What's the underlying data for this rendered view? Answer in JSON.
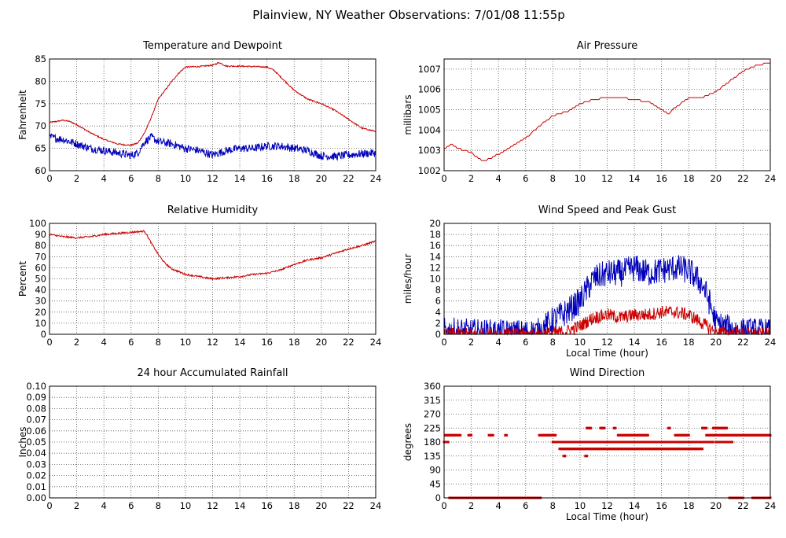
{
  "page": {
    "title": "Plainview, NY Weather Observations: 7/01/08 11:55p"
  },
  "colors": {
    "red": "#cc0000",
    "blue": "#0000bb",
    "frame": "#000000",
    "grid": "#555555"
  },
  "chart_data": [
    {
      "id": "temperature",
      "type": "line",
      "title": "Temperature and Dewpoint",
      "xlabel": "",
      "ylabel": "Fahrenheit",
      "xlim": [
        0,
        24
      ],
      "ylim": [
        60,
        85
      ],
      "xticks": [
        0,
        2,
        4,
        6,
        8,
        10,
        12,
        14,
        16,
        18,
        20,
        22,
        24
      ],
      "yticks": [
        60,
        65,
        70,
        75,
        80,
        85
      ],
      "grid": true,
      "series": [
        {
          "color": "#cc0000",
          "noise": 0.15,
          "x": [
            0,
            0.5,
            1,
            1.5,
            2,
            3,
            4,
            5,
            5.5,
            6,
            6.5,
            7,
            7.5,
            8,
            8.5,
            9,
            9.5,
            10,
            11,
            12,
            12.5,
            13,
            14,
            15,
            16,
            16.5,
            17,
            18,
            19,
            20,
            21,
            22,
            23,
            24
          ],
          "y": [
            70.8,
            71,
            71.3,
            71,
            70.3,
            68.5,
            67,
            66,
            65.8,
            65.7,
            66.2,
            68.5,
            72,
            76,
            78,
            80,
            81.8,
            83.2,
            83.3,
            83.6,
            84.2,
            83.4,
            83.4,
            83.3,
            83.2,
            82.5,
            81,
            78,
            76,
            75,
            73.5,
            71.5,
            69.5,
            68.8
          ]
        },
        {
          "color": "#0000bb",
          "noise": 0.9,
          "x": [
            0,
            1,
            2,
            3,
            4,
            5,
            6,
            6.5,
            7,
            7.5,
            8,
            9,
            10,
            11,
            12,
            13,
            14,
            15,
            16,
            17,
            18,
            19,
            20,
            21,
            22,
            23,
            24
          ],
          "y": [
            67.5,
            67,
            66,
            65,
            64.5,
            64,
            63.4,
            64,
            66.5,
            67.5,
            66.5,
            66,
            65,
            64.5,
            63.5,
            64.5,
            65,
            65,
            65.5,
            65.5,
            65,
            64.5,
            63.3,
            63.2,
            63.5,
            63.8,
            64
          ]
        }
      ]
    },
    {
      "id": "pressure",
      "type": "line",
      "title": "Air Pressure",
      "xlabel": "",
      "ylabel": "millibars",
      "xlim": [
        0,
        24
      ],
      "ylim": [
        1002,
        1007.5
      ],
      "xticks": [
        0,
        2,
        4,
        6,
        8,
        10,
        12,
        14,
        16,
        18,
        20,
        22,
        24
      ],
      "yticks": [
        1002,
        1003,
        1004,
        1005,
        1006,
        1007
      ],
      "grid": true,
      "series": [
        {
          "color": "#cc0000",
          "noise": 0,
          "step": 0.12,
          "x": [
            0,
            0.5,
            1,
            2,
            2.5,
            3,
            4,
            5,
            6,
            7,
            8,
            9,
            10,
            11,
            12,
            13,
            14,
            15,
            16,
            16.5,
            17,
            18,
            19,
            20,
            21,
            22,
            23,
            24
          ],
          "y": [
            1003.1,
            1003.3,
            1003.1,
            1002.9,
            1002.6,
            1002.5,
            1002.8,
            1003.2,
            1003.6,
            1004.2,
            1004.7,
            1004.9,
            1005.3,
            1005.5,
            1005.6,
            1005.6,
            1005.5,
            1005.4,
            1005,
            1004.8,
            1005.1,
            1005.6,
            1005.6,
            1005.9,
            1006.4,
            1006.9,
            1007.2,
            1007.3
          ]
        }
      ]
    },
    {
      "id": "humidity",
      "type": "line",
      "title": "Relative Humidity",
      "xlabel": "",
      "ylabel": "Percent",
      "xlim": [
        0,
        24
      ],
      "ylim": [
        0,
        100
      ],
      "xticks": [
        0,
        2,
        4,
        6,
        8,
        10,
        12,
        14,
        16,
        18,
        20,
        22,
        24
      ],
      "yticks": [
        0,
        10,
        20,
        30,
        40,
        50,
        60,
        70,
        80,
        90,
        100
      ],
      "grid": true,
      "series": [
        {
          "color": "#cc0000",
          "noise": 0.8,
          "x": [
            0,
            1,
            2,
            3,
            4,
            5,
            6,
            7,
            7.5,
            8,
            8.5,
            9,
            10,
            11,
            12,
            13,
            14,
            15,
            16,
            17,
            18,
            19,
            20,
            21,
            22,
            23,
            24
          ],
          "y": [
            90,
            88,
            87,
            88,
            90,
            91,
            92,
            93,
            82,
            72,
            64,
            59,
            54,
            52,
            50,
            51,
            52,
            54,
            55,
            58,
            63,
            67,
            69,
            73,
            77,
            80,
            84
          ]
        }
      ]
    },
    {
      "id": "wind-speed",
      "type": "line",
      "title": "Wind Speed and Peak Gust",
      "xlabel": "Local Time (hour)",
      "ylabel": "miles/hour",
      "xlim": [
        0,
        24
      ],
      "ylim": [
        0,
        20
      ],
      "xticks": [
        0,
        2,
        4,
        6,
        8,
        10,
        12,
        14,
        16,
        18,
        20,
        22,
        24
      ],
      "yticks": [
        0,
        2,
        4,
        6,
        8,
        10,
        12,
        14,
        16,
        18,
        20
      ],
      "grid": true,
      "series": [
        {
          "color": "#0000bb",
          "noise": 2.5,
          "x": [
            0,
            1,
            2,
            3,
            4,
            5,
            6,
            7,
            8,
            9,
            10,
            10.5,
            11,
            11.5,
            12,
            13,
            14,
            15,
            16,
            17,
            18,
            19,
            19.5,
            20,
            21,
            22,
            23,
            24
          ],
          "y": [
            0.5,
            0.5,
            0.3,
            0.3,
            0.2,
            0.2,
            0.2,
            0.5,
            2.5,
            4,
            6,
            8,
            10,
            10.5,
            11,
            11,
            12,
            11,
            11.5,
            12,
            11.5,
            9,
            6,
            2,
            1,
            0.5,
            0.5,
            0.3
          ]
        },
        {
          "color": "#cc0000",
          "noise": 1.2,
          "x": [
            0,
            7,
            9,
            10,
            11,
            12,
            13,
            14,
            15,
            16,
            17,
            18,
            19,
            20,
            24
          ],
          "y": [
            0,
            0,
            0.5,
            1.5,
            3,
            3.5,
            3,
            3.5,
            3.5,
            4,
            4,
            3.5,
            2,
            0.3,
            0
          ]
        }
      ]
    },
    {
      "id": "rainfall",
      "type": "line",
      "title": "24 hour Accumulated Rainfall",
      "xlabel": "",
      "ylabel": "Inches",
      "xlim": [
        0,
        24
      ],
      "ylim": [
        0,
        0.1
      ],
      "xticks": [
        0,
        2,
        4,
        6,
        8,
        10,
        12,
        14,
        16,
        18,
        20,
        22,
        24
      ],
      "yticks": [
        "0.00",
        "0.01",
        "0.02",
        "0.03",
        "0.04",
        "0.05",
        "0.06",
        "0.07",
        "0.08",
        "0.09",
        "0.10"
      ],
      "grid": true,
      "series": [
        {
          "color": "#cc0000",
          "noise": 0,
          "x": [
            0,
            24
          ],
          "y": [
            0,
            0
          ]
        }
      ]
    },
    {
      "id": "wind-direction",
      "type": "scatter",
      "title": "Wind Direction",
      "xlabel": "Local Time (hour)",
      "ylabel": "degrees",
      "xlim": [
        0,
        24
      ],
      "ylim": [
        0,
        360
      ],
      "xticks": [
        0,
        2,
        4,
        6,
        8,
        10,
        12,
        14,
        16,
        18,
        20,
        22,
        24
      ],
      "yticks": [
        0,
        45,
        90,
        135,
        180,
        225,
        270,
        315,
        360
      ],
      "grid": true,
      "series": [
        {
          "color": "#cc0000",
          "segments": [
            {
              "y": 180,
              "x0": 0,
              "x1": 0.3
            },
            {
              "y": 202,
              "x0": 0.1,
              "x1": 1.2
            },
            {
              "y": 0,
              "x0": 0.4,
              "x1": 7.1
            },
            {
              "y": 202,
              "x0": 1.8,
              "x1": 2.0
            },
            {
              "y": 202,
              "x0": 3.3,
              "x1": 3.6
            },
            {
              "y": 202,
              "x0": 4.5,
              "x1": 4.6
            },
            {
              "y": 202,
              "x0": 7.0,
              "x1": 8.2
            },
            {
              "y": 180,
              "x0": 8.0,
              "x1": 19.8
            },
            {
              "y": 158,
              "x0": 8.5,
              "x1": 19.0
            },
            {
              "y": 225,
              "x0": 10.5,
              "x1": 10.8
            },
            {
              "y": 225,
              "x0": 11.5,
              "x1": 11.8
            },
            {
              "y": 225,
              "x0": 12.5,
              "x1": 12.6
            },
            {
              "y": 202,
              "x0": 12.8,
              "x1": 15.0
            },
            {
              "y": 225,
              "x0": 16.5,
              "x1": 16.6
            },
            {
              "y": 202,
              "x0": 17.0,
              "x1": 18.0
            },
            {
              "y": 225,
              "x0": 19.0,
              "x1": 19.3
            },
            {
              "y": 202,
              "x0": 19.3,
              "x1": 24
            },
            {
              "y": 225,
              "x0": 19.8,
              "x1": 20.8
            },
            {
              "y": 180,
              "x0": 20.0,
              "x1": 21.2
            },
            {
              "y": 0,
              "x0": 21.0,
              "x1": 22.0
            },
            {
              "y": 0,
              "x0": 22.7,
              "x1": 24
            },
            {
              "y": 135,
              "x0": 8.8,
              "x1": 8.9
            },
            {
              "y": 135,
              "x0": 10.4,
              "x1": 10.5
            }
          ]
        }
      ]
    }
  ]
}
